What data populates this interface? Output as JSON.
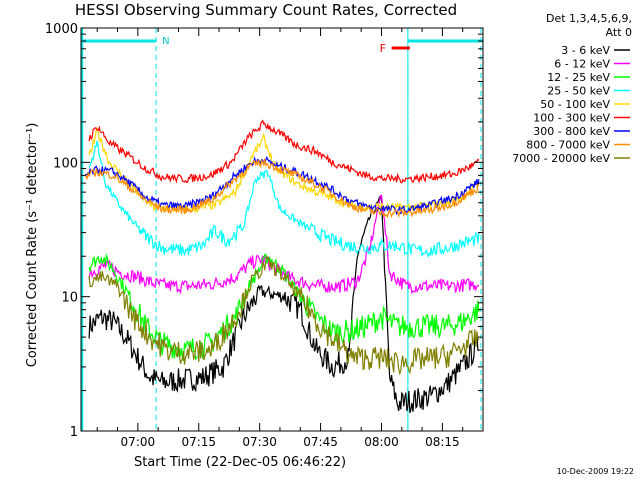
{
  "chart_data": {
    "type": "line",
    "title": "HESSI Observing Summary Count Rates, Corrected",
    "xlabel": "Start Time (22-Dec-05 06:46:22)",
    "ylabel": "Corrected Count Rate (s⁻¹ detector⁻¹)",
    "y_scale": "log",
    "ylim": [
      1,
      1000
    ],
    "xlim_minutes_after_0646": [
      0,
      99
    ],
    "x_ticks": [
      "07:00",
      "07:15",
      "07:30",
      "07:45",
      "08:00",
      "08:15"
    ],
    "x_tick_minutes": [
      14,
      29,
      44,
      59,
      74,
      89
    ],
    "y_ticks": [
      "1",
      "10",
      "100",
      "1000"
    ],
    "y_tick_values": [
      1,
      10,
      100,
      1000
    ],
    "legend_title": [
      "Det 1,3,4,5,6,9,",
      "Att 0"
    ],
    "footer_date": "10-Dec-2009 19:22",
    "annotations": {
      "night_label": "N",
      "flare_label": "F",
      "night_intervals_min": [
        [
          0,
          18.5
        ],
        [
          80.5,
          99
        ]
      ],
      "flare_interval_min": [
        76.5,
        81
      ]
    },
    "dashed_lines_min": [
      18.5,
      80.5,
      98.5
    ],
    "series": [
      {
        "name": "3 - 6 keV",
        "color": "#000000",
        "points": [
          [
            2,
            6
          ],
          [
            5,
            7
          ],
          [
            8,
            6.5
          ],
          [
            11,
            5
          ],
          [
            14,
            3.5
          ],
          [
            17,
            2.5
          ],
          [
            20,
            2.3
          ],
          [
            25,
            2.4
          ],
          [
            30,
            2.5
          ],
          [
            35,
            3
          ],
          [
            40,
            7
          ],
          [
            44,
            11
          ],
          [
            50,
            10
          ],
          [
            54,
            8
          ],
          [
            58,
            4
          ],
          [
            62,
            3
          ],
          [
            66,
            3.5
          ],
          [
            68,
            20
          ],
          [
            71,
            38
          ],
          [
            74,
            55
          ],
          [
            76,
            2.5
          ],
          [
            78,
            1.6
          ],
          [
            82,
            1.7
          ],
          [
            86,
            1.8
          ],
          [
            90,
            2.2
          ],
          [
            94,
            3
          ],
          [
            98,
            4.5
          ]
        ]
      },
      {
        "name": "6 - 12 keV",
        "color": "#ff00ff",
        "points": [
          [
            2,
            15
          ],
          [
            6,
            17
          ],
          [
            10,
            15
          ],
          [
            14,
            14
          ],
          [
            18,
            12.5
          ],
          [
            22,
            12
          ],
          [
            27,
            12
          ],
          [
            33,
            12.5
          ],
          [
            38,
            14
          ],
          [
            42,
            18
          ],
          [
            45,
            19
          ],
          [
            48,
            16
          ],
          [
            52,
            13.5
          ],
          [
            58,
            12
          ],
          [
            64,
            12
          ],
          [
            68,
            13
          ],
          [
            71,
            22
          ],
          [
            74,
            60
          ],
          [
            76,
            15
          ],
          [
            80,
            12
          ],
          [
            86,
            12
          ],
          [
            92,
            12
          ],
          [
            98,
            12.5
          ]
        ]
      },
      {
        "name": "12 - 25 keV",
        "color": "#00ff00",
        "points": [
          [
            2,
            17
          ],
          [
            5,
            20
          ],
          [
            8,
            16
          ],
          [
            12,
            10
          ],
          [
            16,
            6
          ],
          [
            20,
            4.5
          ],
          [
            26,
            4
          ],
          [
            32,
            4.5
          ],
          [
            38,
            7
          ],
          [
            42,
            13
          ],
          [
            46,
            20
          ],
          [
            50,
            15
          ],
          [
            54,
            10
          ],
          [
            58,
            7
          ],
          [
            62,
            5.5
          ],
          [
            66,
            5.5
          ],
          [
            70,
            6
          ],
          [
            74,
            7
          ],
          [
            78,
            6
          ],
          [
            82,
            6
          ],
          [
            86,
            6
          ],
          [
            90,
            6
          ],
          [
            94,
            6.5
          ],
          [
            98,
            8
          ]
        ]
      },
      {
        "name": "25 - 50 keV",
        "color": "#00ffff",
        "points": [
          [
            2,
            90
          ],
          [
            4,
            140
          ],
          [
            6,
            70
          ],
          [
            9,
            50
          ],
          [
            12,
            38
          ],
          [
            16,
            28
          ],
          [
            20,
            23
          ],
          [
            26,
            22
          ],
          [
            30,
            24
          ],
          [
            33,
            31
          ],
          [
            36,
            26
          ],
          [
            40,
            33
          ],
          [
            43,
            75
          ],
          [
            46,
            85
          ],
          [
            49,
            45
          ],
          [
            54,
            35
          ],
          [
            58,
            30
          ],
          [
            62,
            26
          ],
          [
            66,
            24
          ],
          [
            70,
            23
          ],
          [
            74,
            24
          ],
          [
            78,
            24
          ],
          [
            82,
            22
          ],
          [
            86,
            22
          ],
          [
            90,
            23
          ],
          [
            94,
            25
          ],
          [
            98,
            27
          ]
        ]
      },
      {
        "name": "50 - 100 keV",
        "color": "#ffd700",
        "points": [
          [
            2,
            110
          ],
          [
            4,
            170
          ],
          [
            7,
            100
          ],
          [
            11,
            75
          ],
          [
            15,
            55
          ],
          [
            18,
            46
          ],
          [
            22,
            45
          ],
          [
            28,
            45
          ],
          [
            33,
            48
          ],
          [
            38,
            60
          ],
          [
            42,
            110
          ],
          [
            45,
            150
          ],
          [
            48,
            90
          ],
          [
            53,
            70
          ],
          [
            58,
            60
          ],
          [
            62,
            54
          ],
          [
            66,
            48
          ],
          [
            70,
            46
          ],
          [
            74,
            47
          ],
          [
            78,
            46
          ],
          [
            84,
            47
          ],
          [
            90,
            50
          ],
          [
            94,
            55
          ],
          [
            98,
            70
          ]
        ]
      },
      {
        "name": "100 - 300 keV",
        "color": "#ff0000",
        "points": [
          [
            2,
            150
          ],
          [
            4,
            185
          ],
          [
            7,
            140
          ],
          [
            12,
            110
          ],
          [
            16,
            90
          ],
          [
            20,
            78
          ],
          [
            26,
            75
          ],
          [
            32,
            80
          ],
          [
            37,
            100
          ],
          [
            41,
            150
          ],
          [
            45,
            195
          ],
          [
            48,
            170
          ],
          [
            53,
            135
          ],
          [
            58,
            120
          ],
          [
            62,
            100
          ],
          [
            66,
            90
          ],
          [
            70,
            80
          ],
          [
            74,
            76
          ],
          [
            80,
            75
          ],
          [
            86,
            78
          ],
          [
            92,
            82
          ],
          [
            98,
            100
          ]
        ]
      },
      {
        "name": "300 - 800 keV",
        "color": "#0000ff",
        "points": [
          [
            1,
            80
          ],
          [
            4,
            88
          ],
          [
            8,
            85
          ],
          [
            12,
            70
          ],
          [
            16,
            55
          ],
          [
            20,
            48
          ],
          [
            26,
            47
          ],
          [
            32,
            55
          ],
          [
            38,
            80
          ],
          [
            42,
            100
          ],
          [
            45,
            105
          ],
          [
            48,
            95
          ],
          [
            53,
            85
          ],
          [
            58,
            73
          ],
          [
            62,
            62
          ],
          [
            66,
            52
          ],
          [
            70,
            47
          ],
          [
            74,
            45
          ],
          [
            80,
            44
          ],
          [
            86,
            48
          ],
          [
            92,
            55
          ],
          [
            98,
            72
          ]
        ]
      },
      {
        "name": "800 - 7000 keV",
        "color": "#ff8c00",
        "points": [
          [
            1,
            78
          ],
          [
            4,
            85
          ],
          [
            8,
            80
          ],
          [
            12,
            65
          ],
          [
            16,
            52
          ],
          [
            20,
            45
          ],
          [
            26,
            44
          ],
          [
            32,
            52
          ],
          [
            38,
            75
          ],
          [
            42,
            95
          ],
          [
            45,
            100
          ],
          [
            48,
            92
          ],
          [
            53,
            80
          ],
          [
            58,
            68
          ],
          [
            62,
            58
          ],
          [
            66,
            48
          ],
          [
            70,
            44
          ],
          [
            74,
            42
          ],
          [
            80,
            42
          ],
          [
            86,
            44
          ],
          [
            92,
            50
          ],
          [
            98,
            65
          ]
        ]
      },
      {
        "name": "7000 - 20000 keV",
        "color": "#808000",
        "points": [
          [
            2,
            13
          ],
          [
            5,
            14
          ],
          [
            9,
            12
          ],
          [
            13,
            7
          ],
          [
            17,
            5
          ],
          [
            21,
            4
          ],
          [
            26,
            3.8
          ],
          [
            32,
            4
          ],
          [
            38,
            7
          ],
          [
            42,
            13
          ],
          [
            46,
            18
          ],
          [
            50,
            14
          ],
          [
            55,
            9
          ],
          [
            59,
            6
          ],
          [
            63,
            4.5
          ],
          [
            67,
            3.5
          ],
          [
            71,
            3.5
          ],
          [
            74,
            3.5
          ],
          [
            78,
            3.2
          ],
          [
            84,
            3.4
          ],
          [
            90,
            3.6
          ],
          [
            94,
            4.2
          ],
          [
            98,
            5
          ]
        ]
      }
    ]
  }
}
